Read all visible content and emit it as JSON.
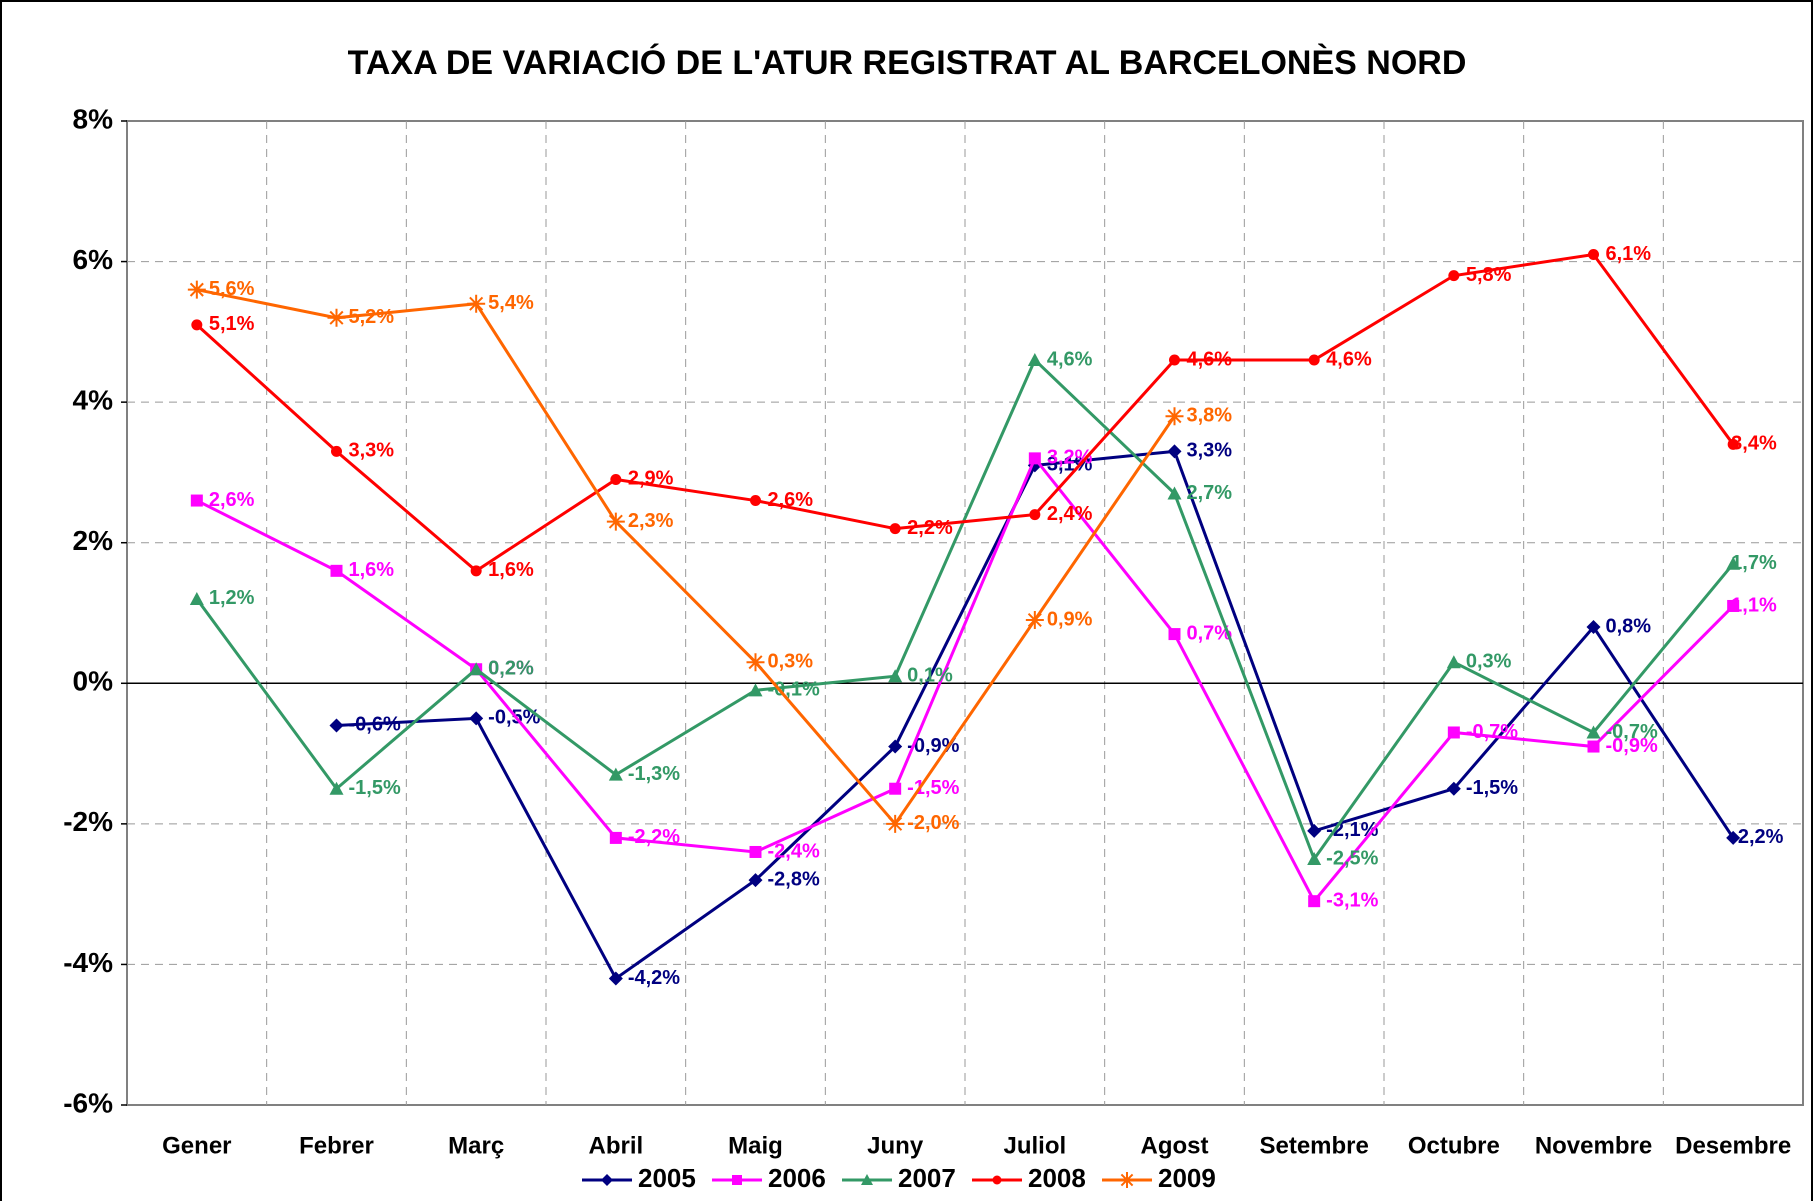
{
  "chart_data": {
    "type": "line",
    "title": "TAXA DE VARIACIÓ DE L'ATUR REGISTRAT AL BARCELONÈS NORD",
    "categories": [
      "Gener",
      "Febrer",
      "Març",
      "Abril",
      "Maig",
      "Juny",
      "Juliol",
      "Agost",
      "Setembre",
      "Octubre",
      "Novembre",
      "Desembre"
    ],
    "ylim": [
      -6,
      8
    ],
    "yticks": [
      {
        "value": -6,
        "label": "-6%"
      },
      {
        "value": -4,
        "label": "-4%"
      },
      {
        "value": -2,
        "label": "-2%"
      },
      {
        "value": 0,
        "label": "0%"
      },
      {
        "value": 2,
        "label": "2%"
      },
      {
        "value": 4,
        "label": "4%"
      },
      {
        "value": 6,
        "label": "6%"
      },
      {
        "value": 8,
        "label": "8%"
      }
    ],
    "grid": true,
    "legend": "bottom",
    "series": [
      {
        "name": "2005",
        "color": "#000080",
        "marker": "diamond",
        "values": [
          null,
          -0.6,
          -0.5,
          -4.2,
          -2.8,
          -0.9,
          3.1,
          3.3,
          -2.1,
          -1.5,
          0.8,
          -2.2
        ],
        "value_labels": [
          null,
          "-0,6%",
          "-0,5%",
          "-4,2%",
          "-2,8%",
          "-0,9%",
          "3,1%",
          "3,3%",
          "-2,1%",
          "-1,5%",
          "0,8%",
          "-2,2%"
        ]
      },
      {
        "name": "2006",
        "color": "#FF00FF",
        "marker": "square",
        "values": [
          2.6,
          1.6,
          0.2,
          -2.2,
          -2.4,
          -1.5,
          3.2,
          0.7,
          -3.1,
          -0.7,
          -0.9,
          1.1
        ],
        "value_labels": [
          "2,6%",
          "1,6%",
          "0,2%",
          "-2,2%",
          "-2,4%",
          "-1,5%",
          "3,2%",
          "0,7%",
          "-3,1%",
          "-0,7%",
          "-0,9%",
          "1,1%"
        ]
      },
      {
        "name": "2007",
        "color": "#339966",
        "marker": "triangle",
        "values": [
          1.2,
          -1.5,
          0.2,
          -1.3,
          -0.1,
          0.1,
          4.6,
          2.7,
          -2.5,
          0.3,
          -0.7,
          1.7
        ],
        "value_labels": [
          "1,2%",
          "-1,5%",
          "0,2%",
          "-1,3%",
          "-0,1%",
          "0,1%",
          "4,6%",
          "2,7%",
          "-2,5%",
          "0,3%",
          "-0,7%",
          "1,7%"
        ]
      },
      {
        "name": "2008",
        "color": "#FF0000",
        "marker": "circle",
        "values": [
          5.1,
          3.3,
          1.6,
          2.9,
          2.6,
          2.2,
          2.4,
          4.6,
          4.6,
          5.8,
          6.1,
          3.4
        ],
        "value_labels": [
          "5,1%",
          "3,3%",
          "1,6%",
          "2,9%",
          "2,6%",
          "2,2%",
          "2,4%",
          "4,6%",
          "4,6%",
          "5,8%",
          "6,1%",
          "3,4%"
        ]
      },
      {
        "name": "2009",
        "color": "#FF6600",
        "marker": "asterisk",
        "values": [
          5.6,
          5.2,
          5.4,
          2.3,
          0.3,
          -2.0,
          0.9,
          3.8,
          null,
          null,
          null,
          null
        ],
        "value_labels": [
          "5,6%",
          "5,2%",
          "5,4%",
          "2,3%",
          "0,3%",
          "-2,0%",
          "0,9%",
          "3,8%",
          null,
          null,
          null,
          null
        ]
      }
    ]
  }
}
